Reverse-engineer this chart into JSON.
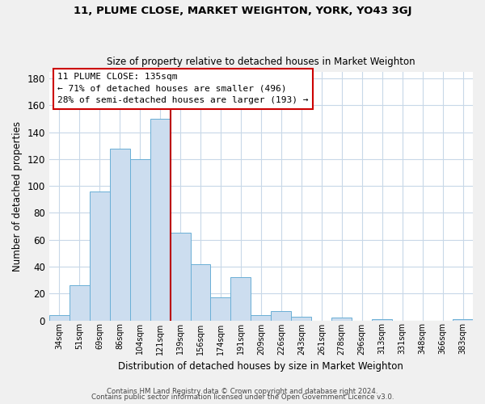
{
  "title": "11, PLUME CLOSE, MARKET WEIGHTON, YORK, YO43 3GJ",
  "subtitle": "Size of property relative to detached houses in Market Weighton",
  "xlabel": "Distribution of detached houses by size in Market Weighton",
  "ylabel": "Number of detached properties",
  "bar_labels": [
    "34sqm",
    "51sqm",
    "69sqm",
    "86sqm",
    "104sqm",
    "121sqm",
    "139sqm",
    "156sqm",
    "174sqm",
    "191sqm",
    "209sqm",
    "226sqm",
    "243sqm",
    "261sqm",
    "278sqm",
    "296sqm",
    "313sqm",
    "331sqm",
    "348sqm",
    "366sqm",
    "383sqm"
  ],
  "bar_values": [
    4,
    26,
    96,
    128,
    120,
    150,
    65,
    42,
    17,
    32,
    4,
    7,
    3,
    0,
    2,
    0,
    1,
    0,
    0,
    0,
    1
  ],
  "bar_color": "#ccddef",
  "bar_edge_color": "#6aafd6",
  "vline_x_index": 6,
  "vline_color": "#bb0000",
  "annotation_title": "11 PLUME CLOSE: 135sqm",
  "annotation_line1": "← 71% of detached houses are smaller (496)",
  "annotation_line2": "28% of semi-detached houses are larger (193) →",
  "annotation_box_color": "#cc0000",
  "ylim": [
    0,
    185
  ],
  "yticks": [
    0,
    20,
    40,
    60,
    80,
    100,
    120,
    140,
    160,
    180
  ],
  "footer1": "Contains HM Land Registry data © Crown copyright and database right 2024.",
  "footer2": "Contains public sector information licensed under the Open Government Licence v3.0.",
  "bg_color": "#f0f0f0",
  "plot_bg_color": "#ffffff",
  "grid_color": "#c8d8e8"
}
